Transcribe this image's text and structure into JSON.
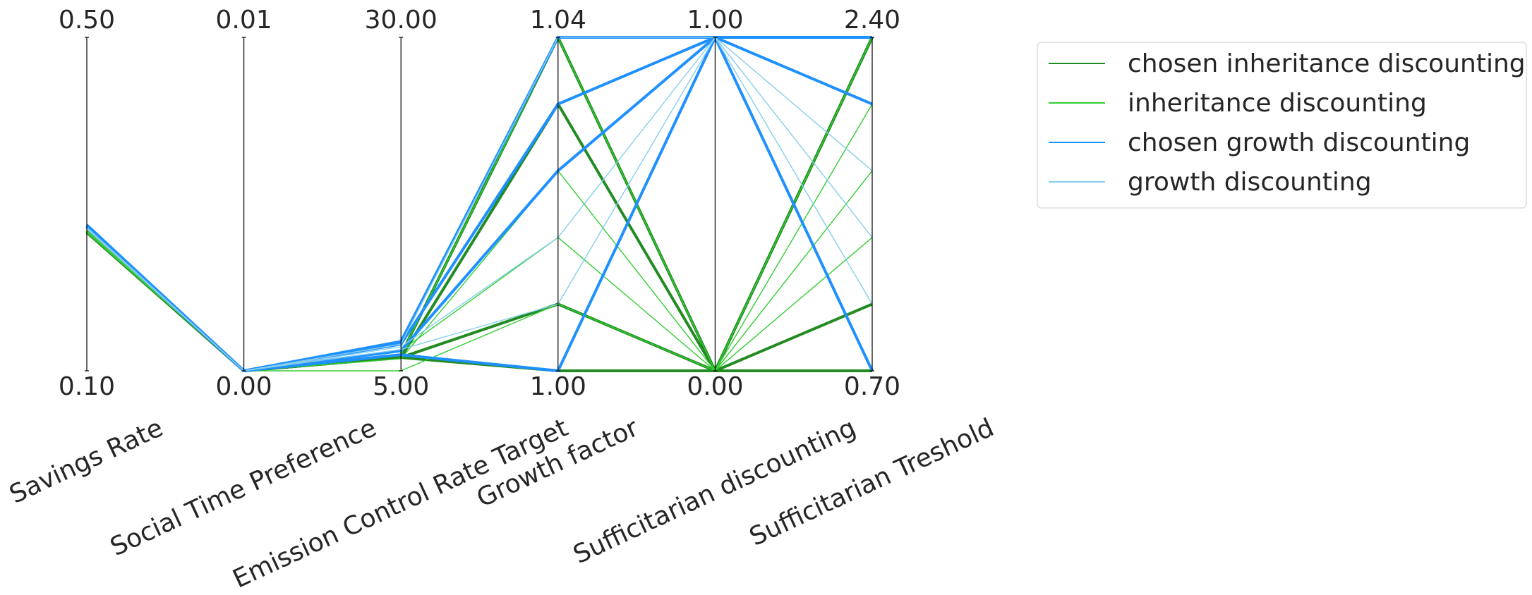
{
  "chart_data": {
    "type": "parallel",
    "axes": [
      {
        "name": "Savings Rate",
        "ylim": [
          0.1,
          0.5
        ],
        "yticks": [
          {
            "value": 0.1,
            "label": "0.10"
          },
          {
            "value": 0.5,
            "label": "0.50"
          }
        ]
      },
      {
        "name": "Social Time Preference",
        "ylim": [
          0,
          0.01
        ],
        "yticks": [
          {
            "value": 0,
            "label": "0.00"
          },
          0.01
        ]
      },
      {
        "name": "Emission Control Rate Target",
        "ylim": [
          5,
          30
        ],
        "yticks": [
          {
            "value": 5,
            "label": "5.00"
          },
          {
            "value": 30,
            "label": "30.00"
          }
        ]
      },
      {
        "name": "Growth factor",
        "ylim": [
          1,
          1.04
        ],
        "yticks": [
          {
            "value": 1,
            "label": "1.00"
          },
          1.04
        ]
      },
      {
        "name": "Sufficitarian discounting",
        "ylim": [
          0,
          1
        ],
        "yticks": [
          {
            "value": 0,
            "label": "0.00"
          },
          {
            "value": 1,
            "label": "1.00"
          }
        ]
      },
      {
        "name": "Sufficitarian Treshold",
        "ylim": [
          0.7,
          2.4
        ],
        "yticks": [
          {
            "value": 0.7,
            "label": "0.70"
          },
          {
            "value": 2.4,
            "label": "2.40"
          }
        ]
      }
    ],
    "series": [
      {
        "name": "chosen inheritance discounting",
        "color": "#228b22",
        "linewidth": 4,
        "lines": [
          [
            0.268,
            0,
            6.2,
            1.04,
            0,
            2.4
          ],
          [
            0.268,
            0,
            6.0,
            1.032,
            0,
            2.4
          ],
          [
            0.267,
            0,
            6.0,
            1.008,
            0,
            1.04
          ],
          [
            0.266,
            0,
            6.0,
            1.0,
            0,
            0.7
          ]
        ]
      },
      {
        "name": "inheritance discounting",
        "color": "#32cd32",
        "linewidth": 1.4,
        "lines": [
          [
            0.267,
            0,
            5.9,
            1.024,
            0,
            2.06
          ],
          [
            0.268,
            0,
            6.5,
            1.016,
            0,
            1.72
          ],
          [
            0.266,
            0,
            5.0,
            1.008,
            0,
            1.38
          ],
          [
            0.267,
            0,
            6.2,
            1.04,
            0,
            2.4
          ]
        ]
      },
      {
        "name": "chosen growth discounting",
        "color": "#1e90ff",
        "linewidth": 4,
        "lines": [
          [
            0.272,
            0,
            7.0,
            1.032,
            1,
            2.4
          ],
          [
            0.274,
            0,
            6.5,
            1.024,
            1,
            2.06
          ],
          [
            0.273,
            0,
            6.2,
            1.0,
            1,
            0.7
          ],
          [
            0.275,
            0,
            7.2,
            1.04,
            1,
            2.4
          ]
        ]
      },
      {
        "name": "growth discounting",
        "color": "#87ceeb",
        "linewidth": 1.4,
        "lines": [
          [
            0.27,
            0,
            6.8,
            1.016,
            1,
            1.72
          ],
          [
            0.271,
            0,
            6.6,
            1.008,
            1,
            1.38
          ],
          [
            0.272,
            0,
            7.0,
            1.04,
            1,
            1.04
          ]
        ]
      }
    ]
  }
}
